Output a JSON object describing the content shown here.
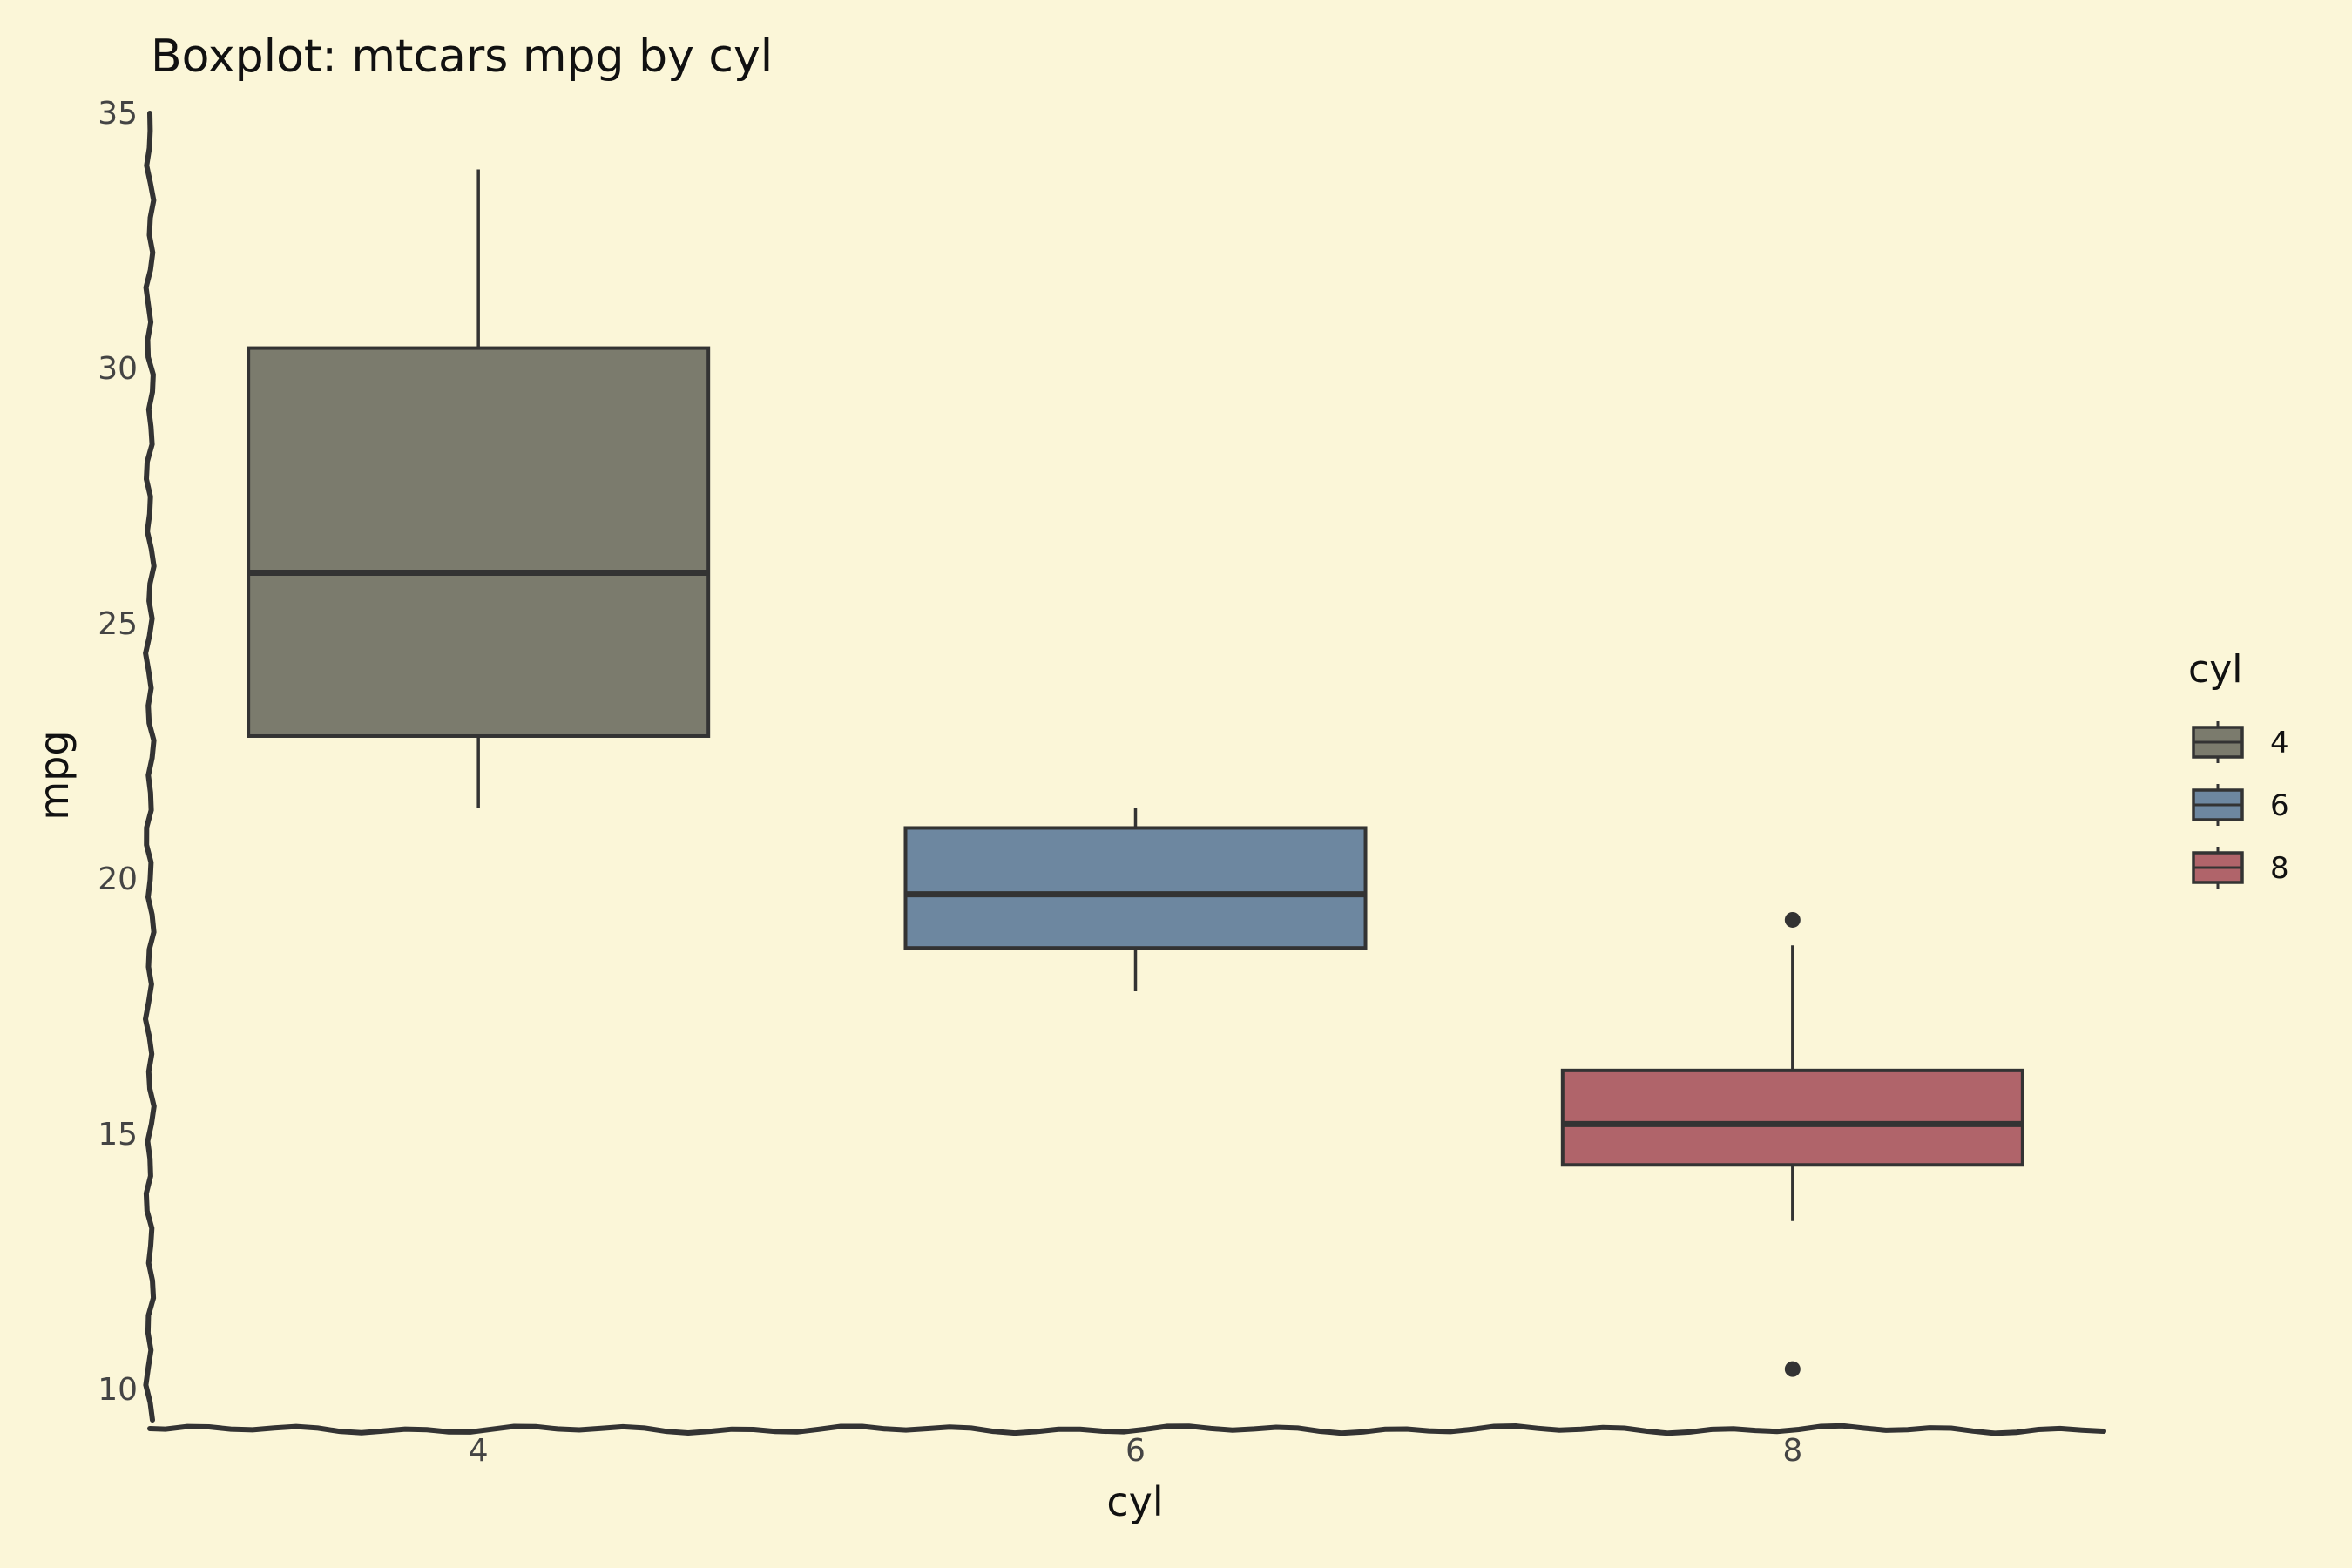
{
  "chart_data": {
    "type": "boxplot",
    "title": "Boxplot: mtcars mpg by cyl",
    "xlabel": "cyl",
    "ylabel": "mpg",
    "ylim": [
      9.2,
      35
    ],
    "yticks": [
      10,
      15,
      20,
      25,
      30,
      35
    ],
    "categories": [
      "4",
      "6",
      "8"
    ],
    "boxes": [
      {
        "category": "4",
        "whisker_low": 21.4,
        "q1": 22.8,
        "median": 26.0,
        "q3": 30.4,
        "whisker_high": 33.9,
        "outliers": [],
        "color": "#7b7b6d"
      },
      {
        "category": "6",
        "whisker_low": 17.8,
        "q1": 18.65,
        "median": 19.7,
        "q3": 21.0,
        "whisker_high": 21.4,
        "outliers": [],
        "color": "#6d87a0"
      },
      {
        "category": "8",
        "whisker_low": 13.3,
        "q1": 14.4,
        "median": 15.2,
        "q3": 16.25,
        "whisker_high": 18.7,
        "outliers": [
          19.2,
          10.4
        ],
        "color": "#b0646a"
      }
    ],
    "legend": {
      "title": "cyl",
      "position": "right",
      "entries": [
        {
          "label": "4",
          "color": "#7b7b6d"
        },
        {
          "label": "6",
          "color": "#6d87a0"
        },
        {
          "label": "8",
          "color": "#b0646a"
        }
      ]
    },
    "grid": false,
    "background": "#fbf6d8"
  }
}
